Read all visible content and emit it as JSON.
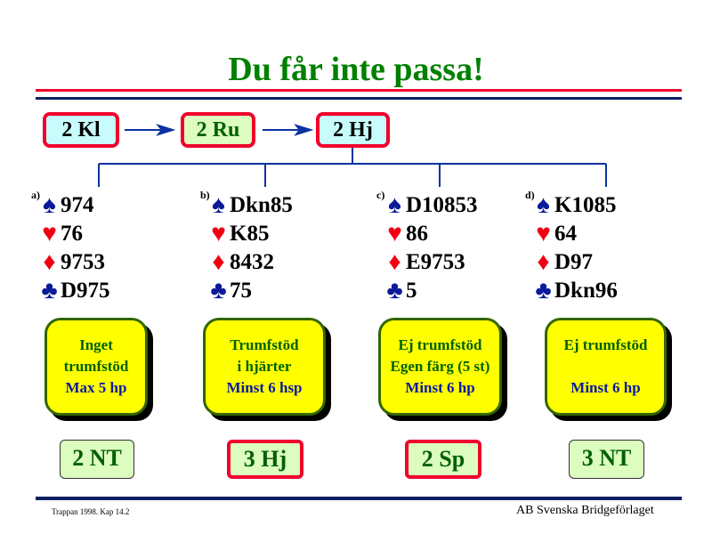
{
  "title": "Du får inte passa!",
  "sequence": [
    {
      "label": "2 Kl",
      "bg": "#c8fcfc"
    },
    {
      "label": "2 Ru",
      "bg": "#dcfcc0"
    },
    {
      "label": "2 Hj",
      "bg": "#c8fcfc"
    }
  ],
  "hands": [
    {
      "label": "a)",
      "spades": "974",
      "hearts": "76",
      "diamonds": "9753",
      "clubs": "D975",
      "note": [
        "Inget",
        "trumfstöd",
        "Max 5 hp"
      ],
      "answer": "2 NT",
      "highlight": false
    },
    {
      "label": "b)",
      "spades": "Dkn85",
      "hearts": "K85",
      "diamonds": "8432",
      "clubs": "75",
      "note": [
        "Trumfstöd",
        "i hjärter",
        "Minst 6 hsp"
      ],
      "answer": "3 Hj",
      "highlight": true
    },
    {
      "label": "c)",
      "spades": "D10853",
      "hearts": "86",
      "diamonds": "E9753",
      "clubs": "5",
      "note": [
        "Ej trumfstöd",
        "Egen färg (5 st)",
        "Minst 6 hp"
      ],
      "answer": "2 Sp",
      "highlight": true
    },
    {
      "label": "d)",
      "spades": "K1085",
      "hearts": "64",
      "diamonds": "D97",
      "clubs": "Dkn96",
      "note": [
        "Ej trumfstöd",
        "",
        "Minst 6 hp"
      ],
      "answer": "3 NT",
      "highlight": false
    }
  ],
  "suits": {
    "spades": "♠",
    "hearts": "♥",
    "diamonds": "♦",
    "clubs": "♣"
  },
  "footer": {
    "left": "Trappan 1998. Kap 14.2",
    "right": "AB Svenska Bridgeförlaget"
  },
  "colors": {
    "title": "#008000",
    "red": "#f0002c",
    "navy": "#0a2060",
    "note": "#ffff00"
  }
}
